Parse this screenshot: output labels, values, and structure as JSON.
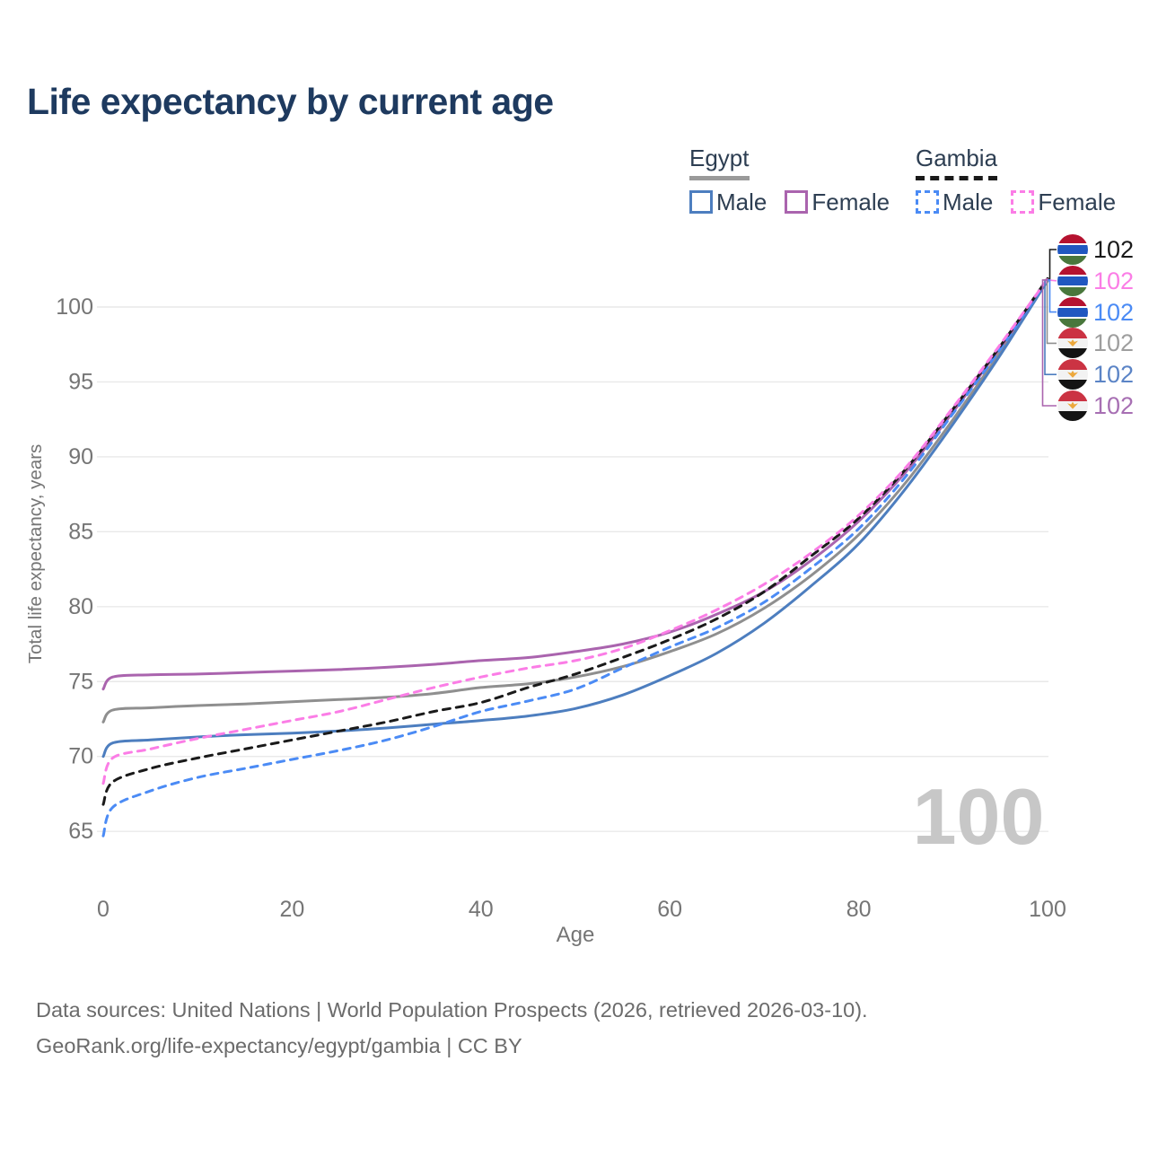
{
  "page": {
    "title": "Life expectancy by current age",
    "watermark": "100",
    "footer_line1": "Data sources: United Nations | World Population Prospects (2026, retrieved 2026-03-10).",
    "footer_line2": "GeoRank.org/life-expectancy/egypt/gambia | CC BY"
  },
  "legend": {
    "groups": [
      {
        "id": "egypt",
        "label": "Egypt",
        "underline_style": "solid",
        "underline_color": "#9a9a9a",
        "items": [
          {
            "series": "egypt_male",
            "label": "Male"
          },
          {
            "series": "egypt_female",
            "label": "Female"
          }
        ]
      },
      {
        "id": "gambia",
        "label": "Gambia",
        "underline_style": "dashed",
        "underline_color": "#1a1a1a",
        "items": [
          {
            "series": "gambia_male",
            "label": "Male"
          },
          {
            "series": "gambia_female",
            "label": "Female"
          }
        ]
      }
    ]
  },
  "colors": {
    "title": "#1e3a5f",
    "axis_text": "#757575",
    "grid": "#e9e9e9",
    "watermark": "#c7c7c7",
    "legend_text": "#2d3e52"
  },
  "chart_data": {
    "type": "line",
    "title": "Life expectancy by current age",
    "xlabel": "Age",
    "ylabel": "Total life expectancy, years",
    "x_ticks": [
      0,
      20,
      40,
      60,
      80,
      100
    ],
    "y_ticks": [
      65,
      70,
      75,
      80,
      85,
      90,
      95,
      100
    ],
    "xlim": [
      0,
      100
    ],
    "ylim": [
      63,
      103
    ],
    "grid": "horizontal",
    "legend_position": "top-right",
    "ages": [
      0,
      1,
      5,
      10,
      15,
      20,
      25,
      30,
      35,
      40,
      45,
      50,
      55,
      60,
      65,
      70,
      75,
      80,
      85,
      90,
      95,
      100
    ],
    "series": [
      {
        "id": "gambia_total",
        "name": "Gambia — Total",
        "country": "Gambia",
        "flag": "gambia",
        "color": "#1a1a1a",
        "dashed": true,
        "end_label": "102",
        "end_label_color": "#1a1a1a",
        "values": [
          66.8,
          68.3,
          69.2,
          69.9,
          70.5,
          71.1,
          71.7,
          72.3,
          73.0,
          73.6,
          74.6,
          75.5,
          76.6,
          77.8,
          79.2,
          81.0,
          83.4,
          85.9,
          89.2,
          93.2,
          97.4,
          101.9
        ]
      },
      {
        "id": "gambia_female",
        "name": "Gambia — Female",
        "country": "Gambia",
        "flag": "gambia",
        "color": "#fb7de6",
        "dashed": true,
        "end_label": "102",
        "end_label_color": "#fb7de6",
        "values": [
          68.2,
          69.9,
          70.5,
          71.2,
          71.8,
          72.4,
          73.0,
          73.8,
          74.6,
          75.3,
          75.9,
          76.4,
          77.2,
          78.4,
          79.8,
          81.5,
          83.6,
          86.1,
          89.3,
          93.3,
          97.5,
          101.87
        ]
      },
      {
        "id": "gambia_male",
        "name": "Gambia — Male",
        "country": "Gambia",
        "flag": "gambia",
        "color": "#4b8bf5",
        "dashed": true,
        "end_label": "102",
        "end_label_color": "#4b8bf5",
        "values": [
          64.7,
          66.6,
          67.7,
          68.6,
          69.2,
          69.8,
          70.4,
          71.1,
          72.0,
          73.0,
          73.7,
          74.5,
          75.9,
          77.3,
          78.6,
          80.3,
          82.6,
          85.2,
          88.7,
          92.9,
          97.2,
          101.84
        ]
      },
      {
        "id": "egypt_total",
        "name": "Egypt — Total",
        "country": "Egypt",
        "flag": "egypt",
        "color": "#8f8f8f",
        "dashed": false,
        "end_label": "102",
        "end_label_color": "#9e9e9e",
        "values": [
          72.3,
          73.1,
          73.25,
          73.4,
          73.5,
          73.65,
          73.8,
          73.95,
          74.2,
          74.6,
          74.85,
          75.3,
          76.0,
          77.0,
          78.2,
          79.9,
          82.1,
          84.8,
          88.3,
          92.5,
          97.0,
          101.8
        ]
      },
      {
        "id": "egypt_male",
        "name": "Egypt — Male",
        "country": "Egypt",
        "flag": "egypt",
        "color": "#4d7ebf",
        "dashed": false,
        "end_label": "102",
        "end_label_color": "#5b84c6",
        "values": [
          70.0,
          70.9,
          71.1,
          71.3,
          71.45,
          71.55,
          71.7,
          71.9,
          72.15,
          72.4,
          72.7,
          73.2,
          74.1,
          75.4,
          76.9,
          78.9,
          81.4,
          84.2,
          87.9,
          92.2,
          96.8,
          101.76
        ]
      },
      {
        "id": "egypt_female",
        "name": "Egypt — Female",
        "country": "Egypt",
        "flag": "egypt",
        "color": "#aa64ae",
        "dashed": false,
        "end_label": "102",
        "end_label_color": "#a76fb3",
        "values": [
          74.5,
          75.3,
          75.45,
          75.5,
          75.6,
          75.7,
          75.8,
          75.95,
          76.15,
          76.4,
          76.6,
          77.0,
          77.5,
          78.3,
          79.5,
          81.0,
          83.1,
          85.7,
          89.0,
          93.0,
          97.3,
          101.73
        ]
      }
    ],
    "draw_order": [
      "egypt_total",
      "egypt_female",
      "egypt_male",
      "gambia_male",
      "gambia_total",
      "gambia_female"
    ],
    "end_label_order": [
      "gambia_total",
      "gambia_female",
      "gambia_male",
      "egypt_total",
      "egypt_male",
      "egypt_female"
    ]
  }
}
